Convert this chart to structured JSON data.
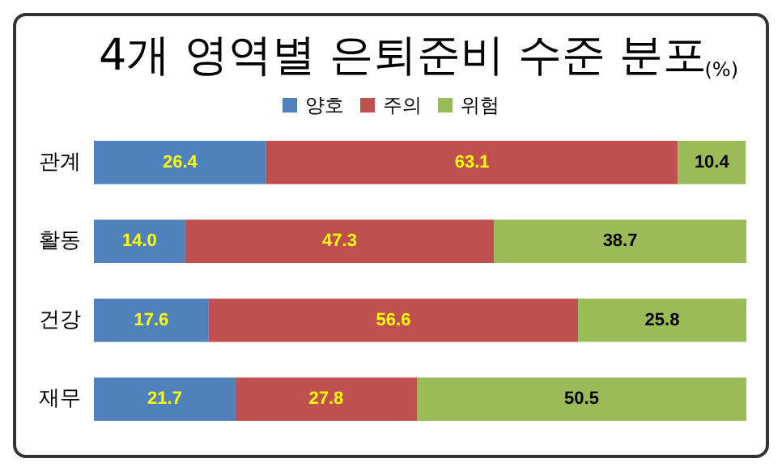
{
  "chart_data": {
    "type": "bar",
    "orientation": "horizontal",
    "stacked": true,
    "title": "4개 영역별 은퇴준비 수준 분포",
    "subtitle": "(%)",
    "categories": [
      "관계",
      "활동",
      "건강",
      "재무"
    ],
    "series": [
      {
        "name": "양호",
        "color": "#4f81bd",
        "values": [
          26.4,
          14.0,
          17.6,
          21.7
        ],
        "value_labels": [
          "26.4",
          "14.0",
          "17.6",
          "21.7"
        ]
      },
      {
        "name": "주의",
        "color": "#c0504d",
        "values": [
          63.1,
          47.3,
          56.6,
          27.8
        ],
        "value_labels": [
          "63.1",
          "47.3",
          "56.6",
          "27.8"
        ]
      },
      {
        "name": "위험",
        "color": "#9bbb59",
        "values": [
          10.4,
          38.7,
          25.8,
          50.5
        ],
        "value_labels": [
          "10.4",
          "38.7",
          "25.8",
          "50.5"
        ]
      }
    ],
    "legend": "top",
    "grid": false
  }
}
